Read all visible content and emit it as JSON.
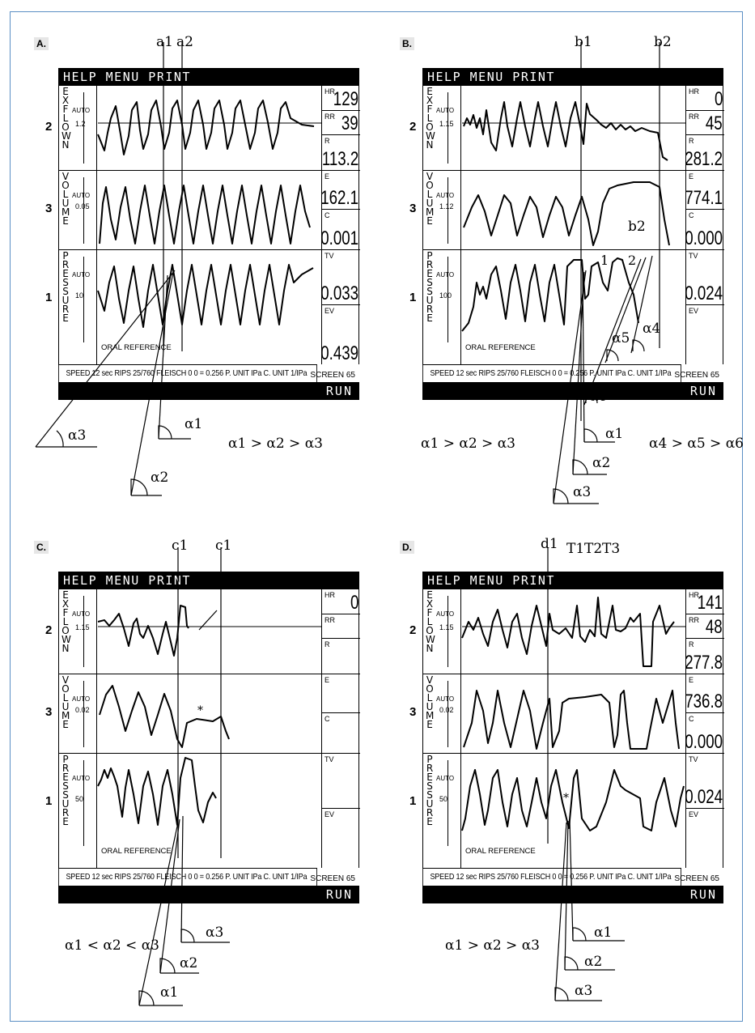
{
  "panels": [
    {
      "id": "A",
      "label": "A.",
      "menu": "HELP MENU PRINT",
      "run": "RUN",
      "screen": "SCREEN 65",
      "status": "SPEED 12 sec   RIPS 25/760    FLEISCH 0    0 = 0.256    P. UNIT IPa  C. UNIT 1/IPa",
      "oral": "ORAL REFERENCE",
      "rows": [
        {
          "mark": "2",
          "letters": [
            "E",
            "X",
            "F",
            "L",
            "O",
            "W",
            "N"
          ],
          "auto": "AUTO",
          "scale": "1.2"
        },
        {
          "mark": "3",
          "letters": [
            "V",
            "O",
            "L",
            "U",
            "M",
            "E"
          ],
          "auto": "AUTO",
          "scale": "0.05"
        },
        {
          "mark": "1",
          "letters": [
            "P",
            "R",
            "E",
            "S",
            "S",
            "U",
            "R",
            "E"
          ],
          "auto": "AUTO",
          "scale": "10"
        }
      ],
      "readouts": [
        {
          "label": "HR",
          "value": "129"
        },
        {
          "label": "RR",
          "value": "39"
        },
        {
          "label": "R",
          "value": "113.2"
        },
        {
          "label": "E",
          "value": "162.1"
        },
        {
          "label": "C",
          "value": "0.001"
        },
        {
          "label": "TV",
          "value": "0.033"
        },
        {
          "label": "EV",
          "value": "0.439"
        }
      ],
      "cursors": [
        "a1",
        "a2"
      ],
      "relation": "α1 > α2 > α3",
      "angles": [
        "α1",
        "α2",
        "α3"
      ]
    },
    {
      "id": "B",
      "label": "B.",
      "menu": "HELP MENU PRINT",
      "run": "RUN",
      "screen": "SCREEN 65",
      "status": "SPEED 12 sec   RIPS 25/760    FLEISCH 0    0 = 0.256    P. UNIT IPa  C. UNIT 1/IPa",
      "oral": "ORAL REFERENCE",
      "rows": [
        {
          "mark": "2",
          "letters": [
            "E",
            "X",
            "F",
            "L",
            "O",
            "W",
            "N"
          ],
          "auto": "AUTO",
          "scale": "1.15"
        },
        {
          "mark": "3",
          "letters": [
            "V",
            "O",
            "L",
            "U",
            "M",
            "E"
          ],
          "auto": "AUTO",
          "scale": "1.12"
        },
        {
          "mark": "1",
          "letters": [
            "P",
            "R",
            "E",
            "S",
            "S",
            "U",
            "R",
            "E"
          ],
          "auto": "AUTO",
          "scale": "100"
        }
      ],
      "readouts": [
        {
          "label": "HR",
          "value": "0"
        },
        {
          "label": "RR",
          "value": "45"
        },
        {
          "label": "R",
          "value": "281.2"
        },
        {
          "label": "E",
          "value": "774.1"
        },
        {
          "label": "C",
          "value": "0.000"
        },
        {
          "label": "TV",
          "value": "0.024"
        },
        {
          "label": "EV",
          "value": ""
        }
      ],
      "cursors": [
        "b1",
        "b2"
      ],
      "inner_labels": [
        "b2",
        "1",
        "2"
      ],
      "relation": "α1 > α2 > α3",
      "relation2": "α4 > α5 > α6",
      "angles": [
        "α1",
        "α2",
        "α3",
        "α4",
        "α5",
        "α6"
      ]
    },
    {
      "id": "C",
      "label": "C.",
      "menu": "HELP MENU PRINT",
      "run": "RUN",
      "screen": "SCREEN 65",
      "status": "SPEED 12 sec   RIPS 25/760    FLEISCH 0    0 = 0.256    P. UNIT IPa  C. UNIT 1/IPa",
      "oral": "ORAL REFERENCE",
      "rows": [
        {
          "mark": "2",
          "letters": [
            "E",
            "X",
            "F",
            "L",
            "O",
            "W",
            "N"
          ],
          "auto": "AUTO",
          "scale": "1.15"
        },
        {
          "mark": "3",
          "letters": [
            "V",
            "O",
            "L",
            "U",
            "M",
            "E"
          ],
          "auto": "AUTO",
          "scale": "0.02"
        },
        {
          "mark": "1",
          "letters": [
            "P",
            "R",
            "E",
            "S",
            "S",
            "U",
            "R",
            "E"
          ],
          "auto": "AUTO",
          "scale": "50"
        }
      ],
      "readouts": [
        {
          "label": "HR",
          "value": "0"
        },
        {
          "label": "RR",
          "value": ""
        },
        {
          "label": "R",
          "value": ""
        },
        {
          "label": "E",
          "value": ""
        },
        {
          "label": "C",
          "value": ""
        },
        {
          "label": "TV",
          "value": ""
        },
        {
          "label": "EV",
          "value": ""
        }
      ],
      "cursors": [
        "c1",
        "c1"
      ],
      "inner_labels": [
        "*"
      ],
      "relation": "α1 < α2 < α3",
      "angles": [
        "α1",
        "α2",
        "α3"
      ]
    },
    {
      "id": "D",
      "label": "D.",
      "menu": "HELP MENU PRINT",
      "run": "RUN",
      "screen": "SCREEN 65",
      "status": "SPEED 12 sec   RIPS 25/760    FLEISCH 0    0 = 0.256    P. UNIT IPa  C. UNIT 1/IPa",
      "oral": "ORAL REFERENCE",
      "rows": [
        {
          "mark": "2",
          "letters": [
            "E",
            "X",
            "F",
            "L",
            "O",
            "W",
            "N"
          ],
          "auto": "AUTO",
          "scale": "1.15"
        },
        {
          "mark": "3",
          "letters": [
            "V",
            "O",
            "L",
            "U",
            "M",
            "E"
          ],
          "auto": "AUTO",
          "scale": "0.02"
        },
        {
          "mark": "1",
          "letters": [
            "P",
            "R",
            "E",
            "S",
            "S",
            "U",
            "R",
            "E"
          ],
          "auto": "AUTO",
          "scale": "50"
        }
      ],
      "readouts": [
        {
          "label": "HR",
          "value": "141"
        },
        {
          "label": "RR",
          "value": "48"
        },
        {
          "label": "R",
          "value": "277.8"
        },
        {
          "label": "E",
          "value": "736.8"
        },
        {
          "label": "C",
          "value": "0.000"
        },
        {
          "label": "TV",
          "value": "0.024"
        },
        {
          "label": "EV",
          "value": ""
        }
      ],
      "cursors": [
        "d1"
      ],
      "time_marks": [
        "T1",
        "T2",
        "T3"
      ],
      "inner_labels": [
        "*"
      ],
      "relation": "α1 > α2 > α3",
      "angles": [
        "α1",
        "α2",
        "α3"
      ]
    }
  ]
}
